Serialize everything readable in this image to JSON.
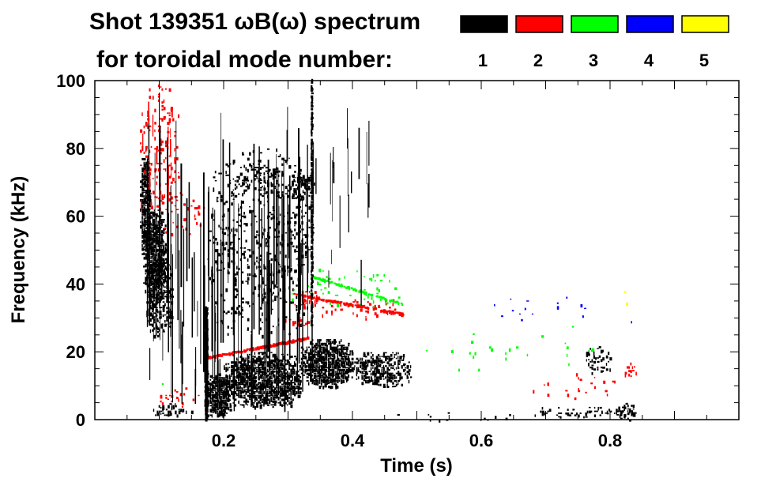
{
  "chart_data": {
    "type": "heatmap",
    "title_line1": "Shot 139351 ωB(ω) spectrum",
    "title_line2": "for toroidal mode number:",
    "xlabel": "Time (s)",
    "ylabel": "Frequency (kHz)",
    "xlim": [
      0.0,
      1.0
    ],
    "ylim": [
      0,
      100
    ],
    "x_ticks": [
      0.2,
      0.4,
      0.6,
      0.8
    ],
    "x_tick_labels": [
      "0.2",
      "0.4",
      "0.6",
      "0.8"
    ],
    "y_ticks": [
      0,
      20,
      40,
      60,
      80,
      100
    ],
    "y_tick_labels": [
      "0",
      "20",
      "40",
      "60",
      "80",
      "100"
    ],
    "legend_placement": "top-right",
    "modes": [
      {
        "label": "1",
        "color": "#000000"
      },
      {
        "label": "2",
        "color": "#ff0000"
      },
      {
        "label": "3",
        "color": "#00ff00"
      },
      {
        "label": "4",
        "color": "#0000ff"
      },
      {
        "label": "5",
        "color": "#ffff00"
      }
    ],
    "blobs": [
      {
        "mode": 1,
        "t": [
          0.07,
          0.085
        ],
        "f": [
          48,
          78
        ],
        "density": 0.85
      },
      {
        "mode": 1,
        "t": [
          0.075,
          0.11
        ],
        "f": [
          35,
          62
        ],
        "density": 0.8
      },
      {
        "mode": 1,
        "t": [
          0.08,
          0.12
        ],
        "f": [
          25,
          48
        ],
        "density": 0.45
      },
      {
        "mode": 1,
        "t": [
          0.085,
          0.15
        ],
        "f": [
          1,
          5
        ],
        "density": 0.4
      },
      {
        "mode": 1,
        "t": [
          0.17,
          0.21
        ],
        "f": [
          1,
          14
        ],
        "density": 0.9
      },
      {
        "mode": 1,
        "t": [
          0.2,
          0.32
        ],
        "f": [
          4,
          20
        ],
        "density": 0.85
      },
      {
        "mode": 1,
        "t": [
          0.32,
          0.4
        ],
        "f": [
          10,
          24
        ],
        "density": 0.85
      },
      {
        "mode": 1,
        "t": [
          0.4,
          0.49
        ],
        "f": [
          10,
          20
        ],
        "density": 0.55
      },
      {
        "mode": 1,
        "t": [
          0.175,
          0.34
        ],
        "f": [
          25,
          80
        ],
        "density": 0.12
      },
      {
        "mode": 1,
        "t": [
          0.3,
          0.34
        ],
        "f": [
          65,
          73
        ],
        "density": 0.45
      },
      {
        "mode": 1,
        "t": [
          0.22,
          0.29
        ],
        "f": [
          68,
          76
        ],
        "density": 0.2
      },
      {
        "mode": 1,
        "t": [
          0.45,
          0.65
        ],
        "f": [
          0,
          3
        ],
        "density": 0.04
      },
      {
        "mode": 1,
        "t": [
          0.68,
          0.82
        ],
        "f": [
          1,
          4
        ],
        "density": 0.25
      },
      {
        "mode": 1,
        "t": [
          0.76,
          0.8
        ],
        "f": [
          14,
          22
        ],
        "density": 0.25
      },
      {
        "mode": 1,
        "t": [
          0.81,
          0.84
        ],
        "f": [
          0,
          5
        ],
        "density": 0.4
      },
      {
        "mode": 2,
        "t": [
          0.07,
          0.13
        ],
        "f": [
          62,
          100
        ],
        "density": 0.12
      },
      {
        "mode": 2,
        "t": [
          0.09,
          0.17
        ],
        "f": [
          55,
          68
        ],
        "density": 0.08
      },
      {
        "mode": 2,
        "t": [
          0.09,
          0.16
        ],
        "f": [
          4,
          10
        ],
        "density": 0.1
      },
      {
        "mode": 2,
        "t": [
          0.31,
          0.35
        ],
        "f": [
          33,
          38
        ],
        "density": 0.35
      },
      {
        "mode": 2,
        "t": [
          0.35,
          0.49
        ],
        "f": [
          30,
          36
        ],
        "density": 0.12
      },
      {
        "mode": 2,
        "t": [
          0.29,
          0.34
        ],
        "f": [
          28,
          31
        ],
        "density": 0.2
      },
      {
        "mode": 2,
        "t": [
          0.68,
          0.82
        ],
        "f": [
          6,
          14
        ],
        "density": 0.04
      },
      {
        "mode": 2,
        "t": [
          0.82,
          0.84
        ],
        "f": [
          13,
          17
        ],
        "density": 0.25
      },
      {
        "mode": 3,
        "t": [
          0.3,
          0.48
        ],
        "f": [
          33,
          45
        ],
        "density": 0.05
      },
      {
        "mode": 3,
        "t": [
          0.5,
          0.8
        ],
        "f": [
          15,
          28
        ],
        "density": 0.012
      },
      {
        "mode": 3,
        "t": [
          0.09,
          0.12
        ],
        "f": [
          8,
          14
        ],
        "density": 0.04
      },
      {
        "mode": 4,
        "t": [
          0.6,
          0.85
        ],
        "f": [
          28,
          38
        ],
        "density": 0.008
      },
      {
        "mode": 5,
        "t": [
          0.78,
          0.84
        ],
        "f": [
          34,
          44
        ],
        "density": 0.008
      }
    ],
    "lines": [
      {
        "mode": 2,
        "t0": 0.17,
        "f0": 18,
        "t1": 0.33,
        "f1": 24,
        "width": 2.6,
        "density": 0.9
      },
      {
        "mode": 2,
        "t0": 0.31,
        "f0": 37,
        "t1": 0.48,
        "f1": 31,
        "width": 2.6,
        "density": 0.7
      },
      {
        "mode": 3,
        "t0": 0.34,
        "f0": 42,
        "t1": 0.48,
        "f1": 34,
        "width": 2.2,
        "density": 0.5
      },
      {
        "mode": 1,
        "t0": 0.173,
        "f0": 0,
        "t1": 0.173,
        "f1": 33,
        "width": 3,
        "density": 0.9
      },
      {
        "mode": 1,
        "t0": 0.337,
        "f0": 28,
        "t1": 0.337,
        "f1": 100,
        "width": 2.5,
        "density": 0.9
      }
    ],
    "streaks": [
      {
        "mode": 1,
        "t": [
          0.08,
          0.34
        ],
        "f_low": [
          2,
          45
        ],
        "len": [
          8,
          60
        ],
        "count": 95
      },
      {
        "mode": 1,
        "t": [
          0.28,
          0.43
        ],
        "f_low": [
          25,
          80
        ],
        "len": [
          3,
          22
        ],
        "count": 35
      },
      {
        "mode": 2,
        "t": [
          0.07,
          0.12
        ],
        "f_low": [
          60,
          90
        ],
        "len": [
          2,
          8
        ],
        "count": 14
      }
    ]
  }
}
